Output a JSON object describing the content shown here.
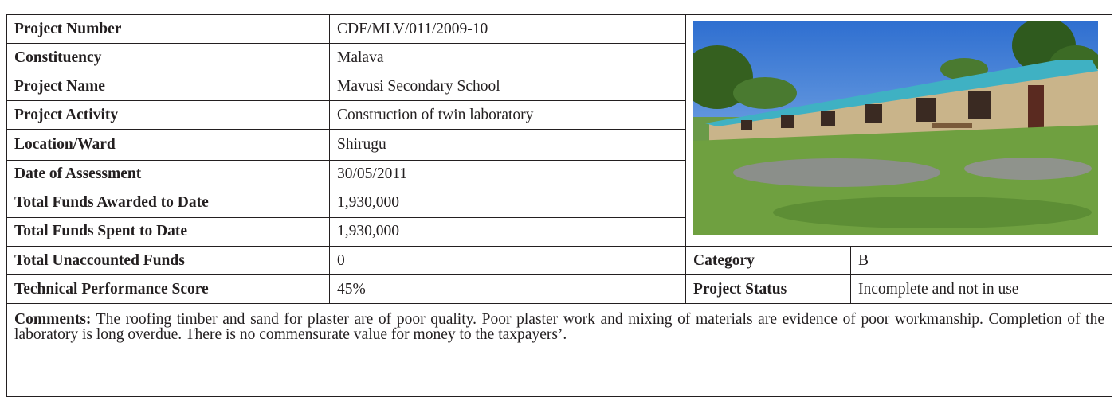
{
  "table": {
    "rows": [
      [
        "Project Number",
        "CDF/MLV/011/2009-10"
      ],
      [
        "Constituency",
        "Malava"
      ],
      [
        "Project Name",
        "Mavusi Secondary School"
      ],
      [
        "Project Activity",
        "Construction of twin laboratory"
      ],
      [
        "Location/Ward",
        "Shirugu"
      ],
      [
        "Date of Assessment",
        "30/05/2011"
      ],
      [
        "Total Funds Awarded to Date",
        "1,930,000"
      ],
      [
        "Total Funds Spent to Date",
        "1,930,000"
      ],
      [
        "Total Unaccounted Funds",
        "0",
        "Category",
        "B"
      ],
      [
        "Technical Performance Score",
        "45%",
        "Project Status",
        "Incomplete and not in use"
      ]
    ]
  },
  "comments": {
    "label": "Comments:",
    "text": "The roofing timber and sand for plaster are of poor quality. Poor plaster work and mixing of materials are evidence of poor workmanship. Completion of the laboratory is long overdue. There is no commensurate value for money to the taxpayers’."
  }
}
